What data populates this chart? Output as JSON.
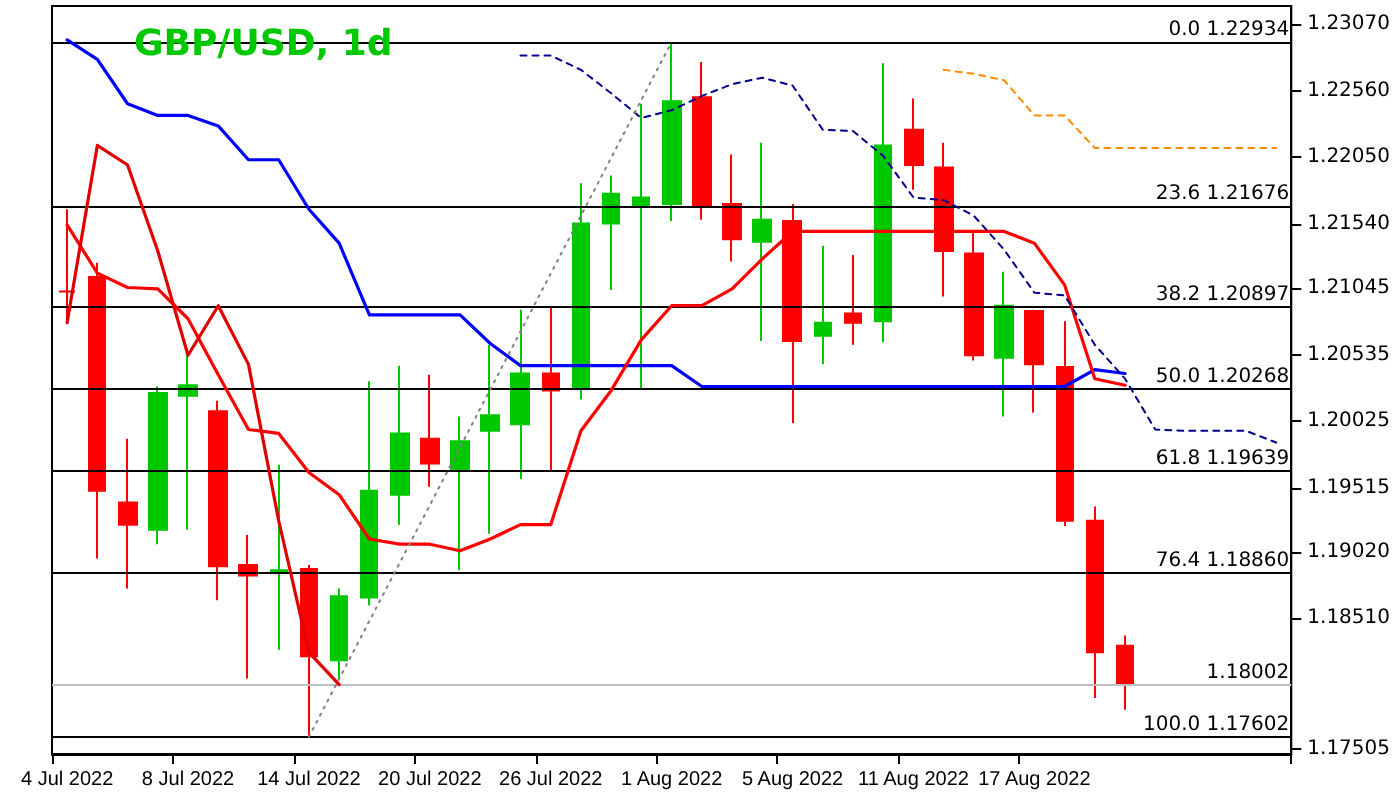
{
  "chart_data": {
    "type": "candlestick",
    "title": "GBP/USD, 1d",
    "categories": [
      "4 Jul 2022",
      null,
      null,
      null,
      "8 Jul 2022",
      null,
      null,
      null,
      "14 Jul 2022",
      null,
      null,
      null,
      "20 Jul 2022",
      null,
      null,
      null,
      "26 Jul 2022",
      null,
      null,
      null,
      "1 Aug 2022",
      null,
      null,
      null,
      "5 Aug 2022",
      null,
      null,
      null,
      "11 Aug 2022",
      null,
      null,
      null,
      "17 Aug 2022",
      null,
      null,
      null,
      null,
      null,
      null,
      null,
      null
    ],
    "series": [
      {
        "type": "line",
        "color": "#0000ff",
        "line_style": "solid",
        "values": [
          1.2295,
          1.228,
          1.2246,
          1.2237,
          1.2237,
          1.2229,
          1.2203,
          1.2203,
          1.2165,
          1.2139,
          1.2084,
          1.2084,
          1.2084,
          1.2084,
          1.2062,
          1.2045,
          1.2045,
          1.2045,
          1.2045,
          1.2045,
          1.2045,
          1.2029,
          1.2029,
          1.2029,
          1.2029,
          1.2029,
          1.2029,
          1.2029,
          1.2029,
          1.2029,
          1.2029,
          1.2029,
          1.2029,
          1.2029,
          1.2042,
          1.2039,
          null,
          null,
          null,
          null,
          null
        ]
      },
      {
        "type": "line",
        "color": "#ff0000",
        "line_style": "solid",
        "values": [
          1.2153,
          1.2116,
          1.2105,
          1.2104,
          1.2081,
          1.2038,
          1.1996,
          1.1993,
          1.1963,
          1.1946,
          1.1912,
          1.1908,
          1.1908,
          1.1903,
          1.1912,
          1.1923,
          1.1923,
          1.1995,
          1.2026,
          1.2065,
          1.2091,
          1.2091,
          1.2104,
          1.2127,
          1.2148,
          1.2148,
          1.2148,
          1.2148,
          1.2148,
          1.2148,
          1.2148,
          1.2148,
          1.2139,
          1.2107,
          1.2035,
          1.203,
          null,
          null,
          null,
          null,
          null
        ]
      },
      {
        "type": "line",
        "color": "#e00000",
        "line_style": "solid",
        "values": [
          1.2078,
          1.2214,
          1.2199,
          1.2133,
          1.2053,
          1.2091,
          1.2046,
          1.1926,
          1.1825,
          1.18002,
          null,
          null,
          null,
          null,
          null,
          null,
          null,
          null,
          null,
          null,
          null,
          null,
          null,
          null,
          null,
          null,
          null,
          null,
          null,
          null,
          null,
          null,
          null,
          null,
          null,
          null,
          null,
          null,
          null,
          null,
          null
        ]
      },
      {
        "type": "line",
        "color": "#00008b",
        "line_style": "dashed",
        "values": [
          null,
          null,
          null,
          null,
          null,
          null,
          null,
          null,
          null,
          null,
          null,
          null,
          null,
          null,
          null,
          1.2283,
          1.2283,
          1.2272,
          1.2254,
          1.2235,
          1.2241,
          1.2252,
          1.2261,
          1.2266,
          1.226,
          1.2226,
          1.2225,
          1.2206,
          1.2174,
          1.2172,
          1.216,
          1.2134,
          1.2101,
          1.2099,
          1.2061,
          1.2035,
          1.1996,
          1.1995,
          1.1995,
          1.1995,
          1.1986
        ]
      },
      {
        "type": "line",
        "color": "#ff8c00",
        "line_style": "dashed",
        "values": [
          null,
          null,
          null,
          null,
          null,
          null,
          null,
          null,
          null,
          null,
          null,
          null,
          null,
          null,
          null,
          null,
          null,
          null,
          null,
          null,
          null,
          null,
          null,
          null,
          null,
          null,
          null,
          null,
          null,
          1.2272,
          1.2269,
          1.2264,
          1.2237,
          1.2237,
          1.2212,
          1.2212,
          1.2212,
          1.2212,
          1.2212,
          1.2212,
          1.2212
        ]
      },
      {
        "type": "line",
        "color": "#808080",
        "line_style": "dotted",
        "x": [
          "14 Jul 2022",
          "1 Aug 2022"
        ],
        "values": [
          1.17602,
          1.22934
        ]
      },
      {
        "ohlc": [
          [
            1.2102,
            1.2165,
            1.2078,
            1.2102
          ],
          [
            1.2113,
            1.2124,
            1.1897,
            1.1949
          ],
          [
            1.194,
            1.1989,
            1.1874,
            1.1923
          ],
          [
            1.1919,
            1.2029,
            1.1908,
            1.2024
          ],
          [
            1.2022,
            1.2055,
            1.1919,
            1.203
          ],
          [
            1.201,
            1.2018,
            1.1865,
            1.1891
          ],
          [
            1.1892,
            1.1915,
            1.1805,
            1.1884
          ],
          [
            1.1887,
            1.1969,
            1.1827,
            1.1888
          ],
          [
            1.1889,
            1.1892,
            1.17602,
            1.1822
          ],
          [
            1.1819,
            1.1874,
            1.1804,
            1.1868
          ],
          [
            1.1867,
            1.2033,
            1.1861,
            1.1949
          ],
          [
            1.1946,
            1.2045,
            1.1923,
            1.1993
          ],
          [
            1.1989,
            1.2038,
            1.1952,
            1.197
          ],
          [
            1.1965,
            1.2006,
            1.1888,
            1.1987
          ],
          [
            1.1995,
            1.2061,
            1.1916,
            1.2007
          ],
          [
            1.2,
            1.2088,
            1.1958,
            1.2039
          ],
          [
            1.2039,
            1.209,
            1.1964,
            1.2026
          ],
          [
            1.2027,
            1.2185,
            1.2019,
            1.2154
          ],
          [
            1.2154,
            1.2191,
            1.2103,
            1.2177
          ],
          [
            1.2167,
            1.2246,
            1.2027,
            1.2174
          ],
          [
            1.2169,
            1.22934,
            1.2156,
            1.2248
          ],
          [
            1.2251,
            1.2278,
            1.2157,
            1.2168
          ],
          [
            1.2169,
            1.2207,
            1.2125,
            1.2142
          ],
          [
            1.214,
            1.2216,
            1.2064,
            1.2157
          ],
          [
            1.2156,
            1.2169,
            1.2001,
            1.2064
          ],
          [
            1.2068,
            1.2137,
            1.2046,
            1.2078
          ],
          [
            1.2085,
            1.213,
            1.2061,
            1.2078
          ],
          [
            1.2079,
            1.2277,
            1.2063,
            1.2214
          ],
          [
            1.2226,
            1.225,
            1.218,
            1.2199
          ],
          [
            1.2197,
            1.2216,
            1.2098,
            1.2133
          ],
          [
            1.2131,
            1.2148,
            1.2049,
            1.2053
          ],
          [
            1.2051,
            1.2117,
            1.2006,
            1.2091
          ],
          [
            1.2087,
            1.2088,
            1.2009,
            1.2046
          ],
          [
            1.2044,
            1.2079,
            1.1922,
            1.1926
          ],
          [
            1.1926,
            1.1937,
            1.179,
            1.1825
          ],
          [
            1.183,
            1.1838,
            1.1781,
            1.18002
          ],
          null,
          null,
          null,
          null,
          null
        ],
        "colors": [
          "#ff0000",
          "#ff0000",
          "#ff0000",
          "#00c800",
          "#00c800",
          "#ff0000",
          "#ff0000",
          "#00c800",
          "#ff0000",
          "#00c800",
          "#00c800",
          "#00c800",
          "#ff0000",
          "#00c800",
          "#00c800",
          "#00c800",
          "#ff0000",
          "#00c800",
          "#00c800",
          "#00c800",
          "#00c800",
          "#ff0000",
          "#ff0000",
          "#00c800",
          "#ff0000",
          "#00c800",
          "#ff0000",
          "#00c800",
          "#ff0000",
          "#ff0000",
          "#ff0000",
          "#00c800",
          "#ff0000",
          "#ff0000",
          "#ff0000",
          "#ff0000",
          null,
          null,
          null,
          null,
          null
        ]
      }
    ],
    "ylim": [
      1.1747,
      1.2321
    ],
    "yticks": [
      {
        "value": 1.2307,
        "label": "1.23070"
      },
      {
        "value": 1.2256,
        "label": "1.22560"
      },
      {
        "value": 1.2205,
        "label": "1.22050"
      },
      {
        "value": 1.2154,
        "label": "1.21540"
      },
      {
        "value": 1.21045,
        "label": "1.21045"
      },
      {
        "value": 1.20535,
        "label": "1.20535"
      },
      {
        "value": 1.20025,
        "label": "1.20025"
      },
      {
        "value": 1.19515,
        "label": "1.19515"
      },
      {
        "value": 1.1902,
        "label": "1.19020"
      },
      {
        "value": 1.1851,
        "label": "1.18510"
      },
      {
        "value": 1.17505,
        "label": "1.17505"
      }
    ],
    "ref_lines": [
      {
        "axis": "y",
        "value": 1.22934,
        "label": "0.0 1.22934",
        "color": "#000000"
      },
      {
        "axis": "y",
        "value": 1.21676,
        "label": "23.6 1.21676",
        "color": "#000000"
      },
      {
        "axis": "y",
        "value": 1.20897,
        "label": "38.2 1.20897",
        "color": "#000000"
      },
      {
        "axis": "y",
        "value": 1.20268,
        "label": "50.0 1.20268",
        "color": "#000000"
      },
      {
        "axis": "y",
        "value": 1.19639,
        "label": "61.8 1.19639",
        "color": "#000000"
      },
      {
        "axis": "y",
        "value": 1.1886,
        "label": "76.4 1.18860",
        "color": "#000000"
      },
      {
        "axis": "y",
        "value": 1.17602,
        "label": "100.0 1.17602",
        "color": "#000000"
      },
      {
        "axis": "y",
        "value": 1.18002,
        "label": "1.18002",
        "color": "#c0c0c0"
      }
    ],
    "grid": false,
    "marker": "none"
  }
}
